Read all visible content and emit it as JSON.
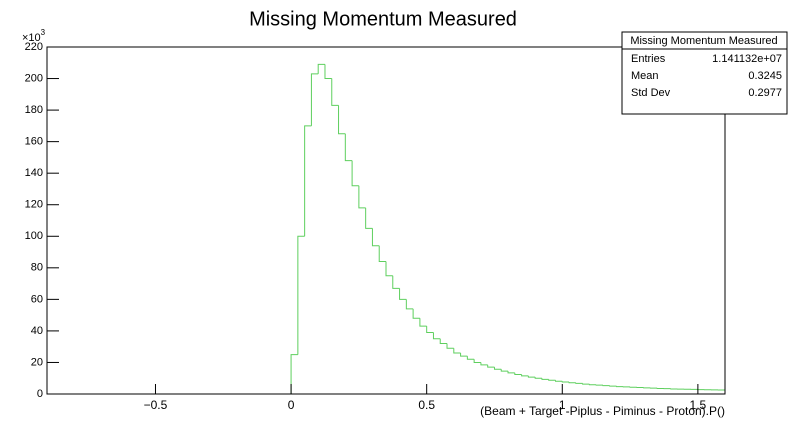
{
  "chart_data": {
    "type": "histogram",
    "title": "Missing Momentum Measured",
    "x_label": "(Beam + Target -Piplus - Piminus - Proton).P()",
    "y_multiplier": "×10",
    "y_multiplier_exponent": "3",
    "color": "#5ecf5e",
    "bins": [
      -0.9,
      -0.8,
      -0.7,
      -0.6,
      -0.5,
      -0.4,
      -0.3,
      -0.2,
      -0.1,
      0,
      0.025,
      0.05,
      0.075,
      0.1,
      0.125,
      0.15,
      0.175,
      0.2,
      0.225,
      0.25,
      0.275,
      0.3,
      0.325,
      0.35,
      0.375,
      0.4,
      0.425,
      0.45,
      0.475,
      0.5,
      0.525,
      0.55,
      0.575,
      0.6,
      0.625,
      0.65,
      0.675,
      0.7,
      0.725,
      0.75,
      0.775,
      0.8,
      0.825,
      0.85,
      0.875,
      0.9,
      0.925,
      0.95,
      0.975,
      1,
      1.025,
      1.05,
      1.075,
      1.1,
      1.125,
      1.15,
      1.175,
      1.2,
      1.225,
      1.25,
      1.275,
      1.3,
      1.325,
      1.35,
      1.375,
      1.4,
      1.425,
      1.45,
      1.475,
      1.5,
      1.525,
      1.55,
      1.575,
      1.6
    ],
    "values": [
      0,
      0,
      0,
      0,
      0,
      0,
      0,
      0,
      0,
      25,
      100,
      170,
      203,
      209,
      200,
      183,
      165,
      148,
      132,
      118,
      105,
      94,
      84,
      75,
      67,
      60,
      54,
      48,
      43,
      39,
      35,
      32,
      29,
      26,
      24,
      22,
      20,
      18.5,
      17,
      15.7,
      14.5,
      13.4,
      12.4,
      11.5,
      10.7,
      10,
      9.3,
      8.7,
      8.1,
      7.6,
      7.1,
      6.7,
      6.3,
      5.9,
      5.6,
      5.3,
      5,
      4.7,
      4.5,
      4.3,
      4.1,
      3.9,
      3.7,
      3.5,
      3.4,
      3.2,
      3.1,
      3,
      2.9,
      2.8,
      2.7,
      2.6,
      2.5
    ],
    "xlim": [
      -0.9,
      1.6
    ],
    "ylim": [
      0,
      220
    ],
    "xticks": [
      {
        "value": -0.5,
        "label": "−0.5"
      },
      0,
      0.5,
      1,
      1.5
    ],
    "yticks": [
      0,
      20,
      40,
      60,
      80,
      100,
      120,
      140,
      160,
      180,
      200,
      220
    ],
    "stats_box": {
      "title": "Missing Momentum Measured",
      "rows": [
        {
          "name": "Entries",
          "value": {
            "value": 11411320,
            "label": "1.141132e+07"
          }
        },
        {
          "name": "Mean",
          "value": 0.3245
        },
        {
          "name": "Std Dev",
          "value": 0.2977
        }
      ]
    }
  }
}
